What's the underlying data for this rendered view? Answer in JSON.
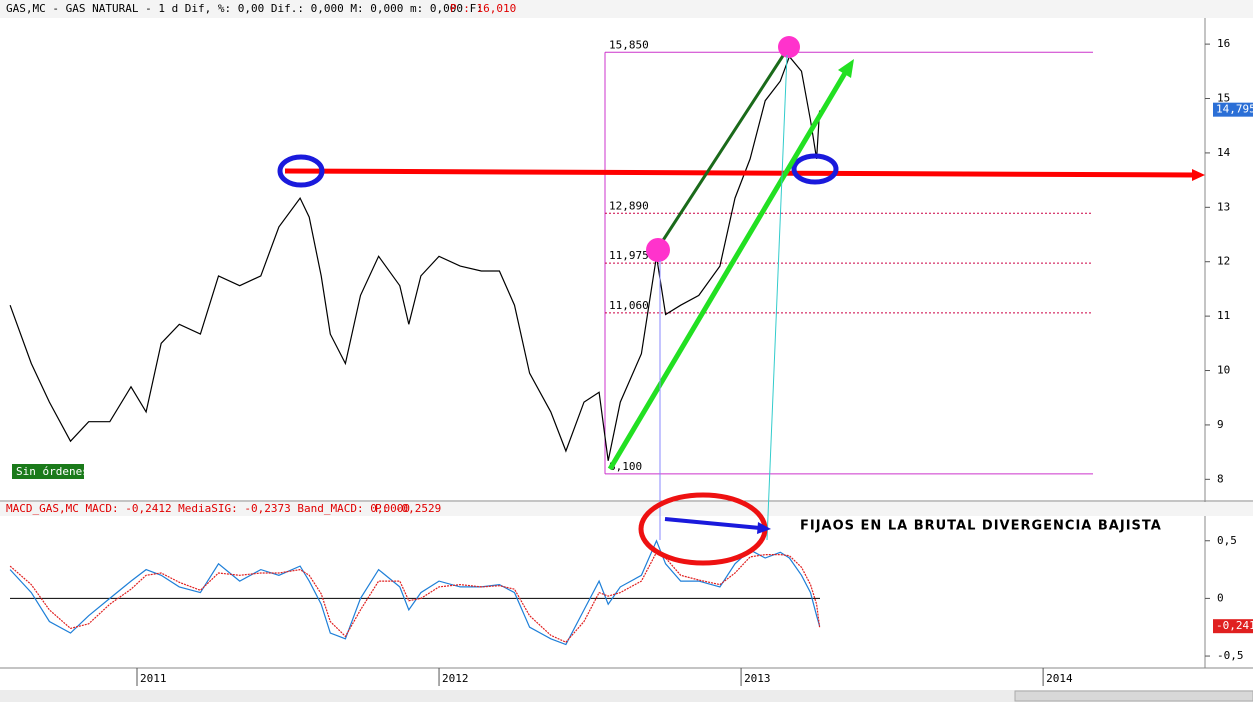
{
  "chart_data": [
    {
      "type": "line",
      "title": "GAS,MC - GAS NATURAL -  1 d Dif, %: 0,00 Dif.: 0,000 M: 0,000 m: 0,000 F:",
      "title_price": "P : 16,010",
      "x": [
        2010.58,
        2010.65,
        2010.71,
        2010.78,
        2010.84,
        2010.91,
        2010.98,
        2011.03,
        2011.08,
        2011.14,
        2011.21,
        2011.27,
        2011.34,
        2011.41,
        2011.47,
        2011.54,
        2011.57,
        2011.61,
        2011.64,
        2011.69,
        2011.74,
        2011.8,
        2011.87,
        2011.9,
        2011.94,
        2012.0,
        2012.07,
        2012.14,
        2012.2,
        2012.25,
        2012.3,
        2012.37,
        2012.42,
        2012.48,
        2012.53,
        2012.56,
        2012.6,
        2012.67,
        2012.72,
        2012.75,
        2012.8,
        2012.86,
        2012.93,
        2012.98,
        2013.03,
        2013.08,
        2013.13,
        2013.16,
        2013.2,
        2013.23,
        2013.25,
        2013.26
      ],
      "series": [
        {
          "name": "GAS,MC",
          "color": "#000000",
          "values": [
            11.2,
            10.13,
            9.42,
            8.7,
            9.06,
            9.06,
            9.7,
            9.24,
            10.5,
            10.85,
            10.67,
            11.74,
            11.56,
            11.74,
            12.64,
            13.17,
            12.82,
            11.74,
            10.67,
            10.13,
            11.38,
            12.1,
            11.56,
            10.85,
            11.74,
            12.1,
            11.92,
            11.83,
            11.83,
            11.2,
            9.95,
            9.24,
            8.52,
            9.42,
            9.6,
            8.34,
            9.42,
            10.31,
            12.1,
            11.03,
            11.2,
            11.38,
            11.92,
            13.17,
            13.89,
            14.96,
            15.32,
            15.77,
            15.5,
            14.6,
            13.89,
            14.78
          ]
        }
      ],
      "xlim": [
        2010.563,
        2014.536
      ],
      "ylim": [
        7.62,
        16.48
      ],
      "yticks": [
        8,
        9,
        10,
        11,
        12,
        13,
        14,
        15,
        16
      ],
      "last": {
        "value": 14.795,
        "label": "14,795"
      },
      "fib_levels": [
        {
          "value": 15.85,
          "label": "15,850"
        },
        {
          "value": 12.89,
          "label": "12,890"
        },
        {
          "value": 11.975,
          "label": "11,975"
        },
        {
          "value": 11.06,
          "label": "11,060"
        },
        {
          "value": 8.1,
          "label": "8,100"
        }
      ],
      "status": "Sin órdenes"
    },
    {
      "type": "line",
      "title": "MACD_GAS,MC MACD: -0,2412 MediaSIG: -0,2373 Band_MACD: 0,0000",
      "title_price": "P: -0,2529",
      "x": [
        2010.58,
        2010.65,
        2010.71,
        2010.78,
        2010.84,
        2010.91,
        2010.98,
        2011.03,
        2011.08,
        2011.14,
        2011.21,
        2011.27,
        2011.34,
        2011.41,
        2011.47,
        2011.54,
        2011.57,
        2011.61,
        2011.64,
        2011.69,
        2011.74,
        2011.8,
        2011.87,
        2011.9,
        2011.94,
        2012.0,
        2012.07,
        2012.14,
        2012.2,
        2012.25,
        2012.3,
        2012.37,
        2012.42,
        2012.48,
        2012.53,
        2012.56,
        2012.6,
        2012.67,
        2012.72,
        2012.75,
        2012.8,
        2012.86,
        2012.93,
        2012.98,
        2013.03,
        2013.08,
        2013.13,
        2013.16,
        2013.2,
        2013.23,
        2013.25,
        2013.26
      ],
      "series": [
        {
          "name": "MACD",
          "color": "#1e7fd8",
          "values": [
            0.25,
            0.05,
            -0.2,
            -0.3,
            -0.15,
            0.0,
            0.15,
            0.25,
            0.2,
            0.1,
            0.05,
            0.3,
            0.15,
            0.25,
            0.2,
            0.28,
            0.15,
            -0.05,
            -0.3,
            -0.35,
            0.0,
            0.25,
            0.1,
            -0.1,
            0.05,
            0.15,
            0.1,
            0.1,
            0.12,
            0.05,
            -0.25,
            -0.35,
            -0.4,
            -0.1,
            0.15,
            -0.05,
            0.1,
            0.2,
            0.5,
            0.3,
            0.15,
            0.15,
            0.1,
            0.3,
            0.42,
            0.35,
            0.4,
            0.35,
            0.2,
            0.05,
            -0.15,
            -0.24
          ]
        },
        {
          "name": "MediaSIG",
          "color": "#e02020",
          "values": [
            0.28,
            0.12,
            -0.1,
            -0.26,
            -0.22,
            -0.05,
            0.08,
            0.2,
            0.22,
            0.14,
            0.07,
            0.22,
            0.2,
            0.22,
            0.22,
            0.25,
            0.2,
            0.04,
            -0.2,
            -0.33,
            -0.1,
            0.15,
            0.15,
            -0.02,
            0.0,
            0.1,
            0.12,
            0.1,
            0.11,
            0.08,
            -0.15,
            -0.32,
            -0.38,
            -0.2,
            0.05,
            0.02,
            0.05,
            0.15,
            0.4,
            0.35,
            0.2,
            0.16,
            0.12,
            0.22,
            0.36,
            0.38,
            0.38,
            0.37,
            0.27,
            0.12,
            -0.05,
            -0.25
          ]
        }
      ],
      "xlim": [
        2010.563,
        2014.536
      ],
      "ylim": [
        -0.595,
        0.706
      ],
      "yticks": [
        {
          "value": 0.5,
          "label": "0,5"
        },
        0,
        {
          "value": -0.5,
          "label": "-0,5"
        }
      ],
      "last": {
        "value": -0.241,
        "label": "-0,241"
      },
      "xticks": [
        2011,
        2012,
        2013,
        2014
      ]
    }
  ],
  "annotation": "FIJAOS EN LA BRUTAL DIVERGENCIA BAJISTA"
}
